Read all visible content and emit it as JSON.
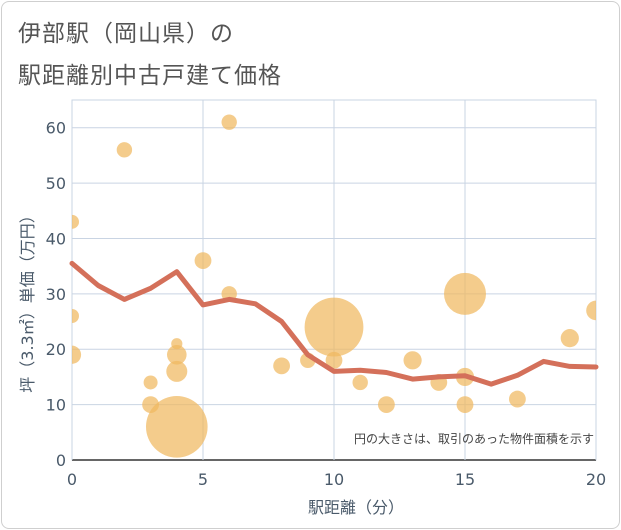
{
  "title_line1": "伊部駅（岡山県）の",
  "title_line2": "駅距離別中古戸建て価格",
  "chart_data": {
    "type": "scatter",
    "title": "伊部駅（岡山県）の駅距離別中古戸建て価格",
    "xlabel": "駅距離（分）",
    "ylabel": "坪（3.3㎡）単価（万円）",
    "xlim": [
      0,
      20
    ],
    "ylim": [
      0,
      65
    ],
    "xticks": [
      0,
      5,
      10,
      15,
      20
    ],
    "yticks": [
      0,
      10,
      20,
      30,
      40,
      50,
      60
    ],
    "grid": true,
    "annotation": "円の大きさは、取引のあった物件面積を示す",
    "colors": {
      "bubble": "#f0b860",
      "line": "#d4705a",
      "grid": "#c9d4e3",
      "axis_text": "#4a5a6a"
    },
    "scatter": [
      {
        "x": 0,
        "y": 43,
        "size": 1
      },
      {
        "x": 0,
        "y": 26,
        "size": 1
      },
      {
        "x": 0,
        "y": 19,
        "size": 1.3
      },
      {
        "x": 2,
        "y": 56,
        "size": 1.1
      },
      {
        "x": 3,
        "y": 14,
        "size": 1
      },
      {
        "x": 3,
        "y": 10,
        "size": 1.2
      },
      {
        "x": 4,
        "y": 21,
        "size": 0.8
      },
      {
        "x": 4,
        "y": 19,
        "size": 1.4
      },
      {
        "x": 4,
        "y": 16,
        "size": 1.5
      },
      {
        "x": 4,
        "y": 6,
        "size": 4.4
      },
      {
        "x": 5,
        "y": 36,
        "size": 1.2
      },
      {
        "x": 6,
        "y": 61,
        "size": 1.1
      },
      {
        "x": 6,
        "y": 30,
        "size": 1.1
      },
      {
        "x": 8,
        "y": 17,
        "size": 1.2
      },
      {
        "x": 9,
        "y": 18,
        "size": 1.1
      },
      {
        "x": 10,
        "y": 24,
        "size": 4.2
      },
      {
        "x": 10,
        "y": 18,
        "size": 1.2
      },
      {
        "x": 11,
        "y": 14,
        "size": 1.1
      },
      {
        "x": 12,
        "y": 10,
        "size": 1.2
      },
      {
        "x": 13,
        "y": 18,
        "size": 1.3
      },
      {
        "x": 14,
        "y": 14,
        "size": 1.2
      },
      {
        "x": 15,
        "y": 30,
        "size": 3.0
      },
      {
        "x": 15,
        "y": 15,
        "size": 1.3
      },
      {
        "x": 15,
        "y": 10,
        "size": 1.2
      },
      {
        "x": 17,
        "y": 11,
        "size": 1.2
      },
      {
        "x": 19,
        "y": 22,
        "size": 1.3
      },
      {
        "x": 20,
        "y": 27,
        "size": 1.4
      }
    ],
    "trend": {
      "x": [
        0,
        1,
        2,
        3,
        4,
        5,
        6,
        7,
        8,
        9,
        10,
        11,
        12,
        13,
        14,
        15,
        16,
        17,
        18,
        19,
        20
      ],
      "y": [
        35.5,
        31.5,
        29,
        31,
        34,
        28,
        29,
        28.2,
        25,
        19,
        16,
        16.2,
        15.8,
        14.6,
        15,
        15.2,
        13.7,
        15.3,
        17.8,
        16.9,
        16.8
      ]
    }
  }
}
